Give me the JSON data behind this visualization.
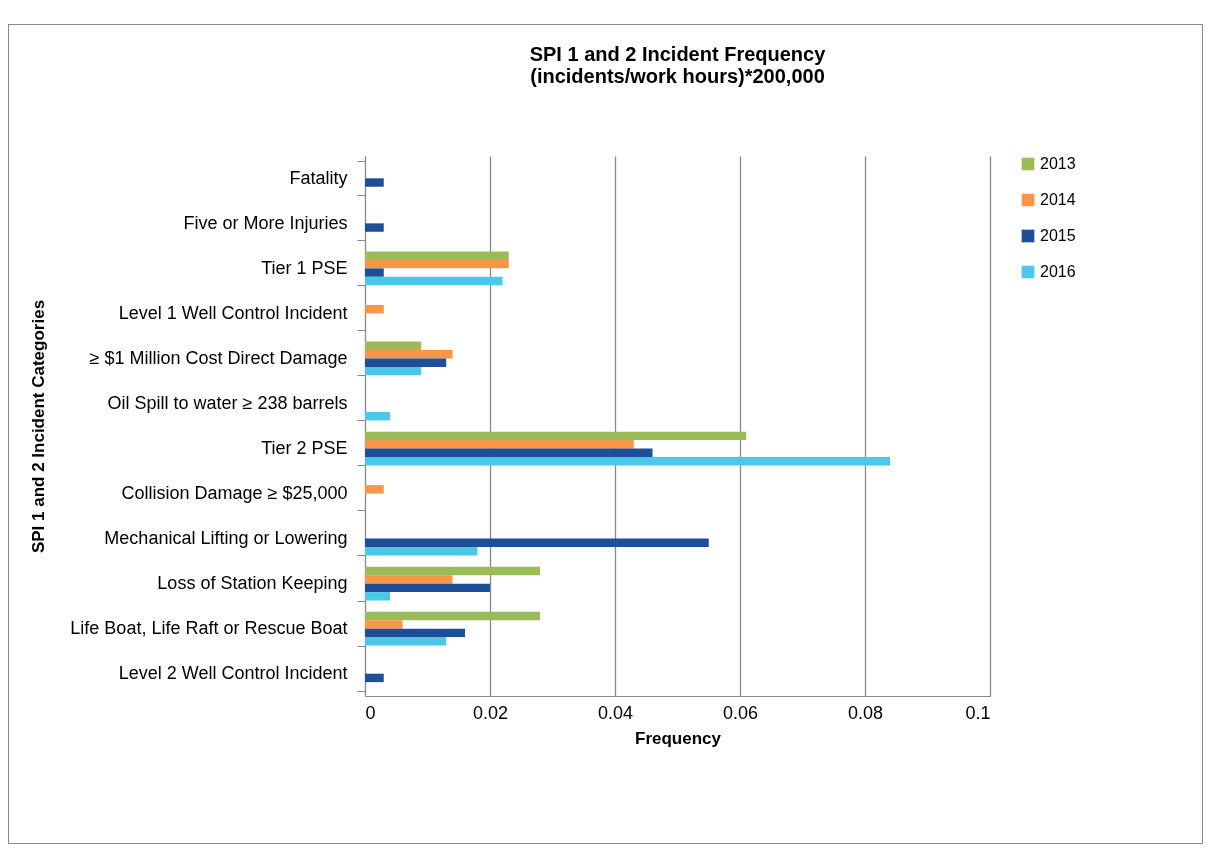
{
  "chart_data": {
    "type": "bar",
    "orientation": "horizontal",
    "title": "SPI 1 and 2 Incident Frequency\n(incidents/work hours)*200,000",
    "xlabel": "Frequency",
    "ylabel": "SPI 1 and 2 Incident Categories",
    "categories": [
      "Fatality",
      "Five or More Injuries",
      "Tier 1 PSE",
      "Level 1 Well Control Incident",
      "≥ $1 Million Cost Direct Damage",
      "Oil Spill to water ≥ 238 barrels",
      "Tier 2 PSE",
      "Collision Damage ≥ $25,000",
      "Mechanical Lifting or Lowering",
      "Loss of Station Keeping",
      "Life Boat, Life Raft or Rescue Boat",
      "Level 2 Well Control Incident"
    ],
    "series": [
      {
        "name": "2013",
        "color": "#9bbb59",
        "values": [
          null,
          null,
          0.023,
          null,
          0.009,
          null,
          0.061,
          null,
          null,
          0.028,
          0.028,
          null
        ]
      },
      {
        "name": "2014",
        "color": "#f79646",
        "values": [
          null,
          null,
          0.023,
          0.003,
          0.014,
          null,
          0.043,
          0.003,
          null,
          0.014,
          0.006,
          null
        ]
      },
      {
        "name": "2015",
        "color": "#1f4e99",
        "values": [
          0.003,
          0.003,
          0.003,
          null,
          0.013,
          null,
          0.046,
          null,
          0.055,
          0.02,
          0.016,
          0.003
        ]
      },
      {
        "name": "2016",
        "color": "#4bc8e8",
        "values": [
          null,
          null,
          0.022,
          null,
          0.009,
          0.004,
          0.084,
          null,
          0.018,
          0.004,
          0.013,
          null
        ]
      }
    ],
    "xlim": [
      0,
      0.1
    ],
    "xticks": [
      0,
      0.02,
      0.04,
      0.06,
      0.08,
      0.1
    ],
    "grid": "x",
    "legend": "right"
  }
}
